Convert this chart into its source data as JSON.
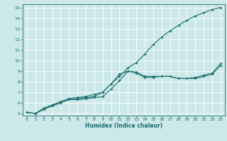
{
  "xlabel": "Humidex (Indice chaleur)",
  "xlim": [
    -0.5,
    23.5
  ],
  "ylim": [
    4.8,
    15.3
  ],
  "xticks": [
    0,
    1,
    2,
    3,
    4,
    5,
    6,
    7,
    8,
    9,
    10,
    11,
    12,
    13,
    14,
    15,
    16,
    17,
    18,
    19,
    20,
    21,
    22,
    23
  ],
  "yticks": [
    5,
    6,
    7,
    8,
    9,
    10,
    11,
    12,
    13,
    14,
    15
  ],
  "bg_color": "#cce8e8",
  "line_color": "#1a7070",
  "line1_x": [
    0,
    1,
    2,
    3,
    4,
    5,
    6,
    7,
    8,
    9,
    10,
    11,
    12,
    13,
    14,
    15,
    16,
    17,
    18,
    19,
    20,
    21,
    22,
    23
  ],
  "line1_y": [
    5.1,
    5.0,
    5.4,
    5.7,
    6.0,
    6.3,
    6.3,
    6.4,
    6.5,
    6.6,
    7.3,
    8.1,
    9.0,
    8.8,
    8.4,
    8.4,
    8.5,
    8.5,
    8.3,
    8.3,
    8.3,
    8.5,
    8.7,
    9.5
  ],
  "line2_x": [
    0,
    1,
    2,
    3,
    4,
    5,
    6,
    7,
    8,
    9,
    10,
    11,
    12,
    13,
    14,
    15,
    16,
    17,
    18,
    19,
    20,
    21,
    22,
    23
  ],
  "line2_y": [
    5.1,
    5.0,
    5.4,
    5.8,
    6.1,
    6.4,
    6.4,
    6.5,
    6.6,
    7.0,
    7.8,
    8.7,
    9.0,
    8.9,
    8.5,
    8.5,
    8.5,
    8.5,
    8.3,
    8.3,
    8.4,
    8.6,
    8.8,
    9.7
  ],
  "line3_x": [
    0,
    1,
    2,
    3,
    4,
    5,
    6,
    7,
    8,
    9,
    10,
    11,
    12,
    13,
    14,
    15,
    16,
    17,
    18,
    19,
    20,
    21,
    22,
    23
  ],
  "line3_y": [
    5.1,
    5.0,
    5.5,
    5.8,
    6.1,
    6.4,
    6.5,
    6.6,
    6.8,
    7.0,
    7.8,
    8.5,
    9.3,
    9.8,
    10.6,
    11.5,
    12.2,
    12.8,
    13.3,
    13.8,
    14.2,
    14.5,
    14.8,
    15.0
  ]
}
